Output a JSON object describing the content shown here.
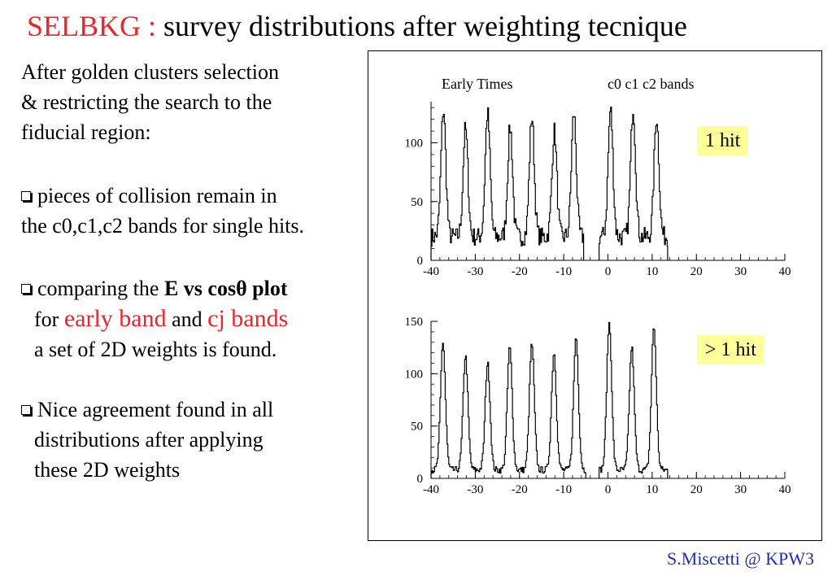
{
  "title": {
    "prefix": "SELBKG :",
    "main": "survey distributions after weighting tecnique"
  },
  "text": {
    "intro_line1": "After golden clusters selection",
    "intro_line2": "& restricting the search to the",
    "intro_line3": "fiducial region:",
    "b1_line1": "pieces of collision remain in",
    "b1_line2": "the c0,c1,c2 bands for single hits.",
    "b2_pre": "comparing the ",
    "b2_bold": "E vs cosθ plot",
    "b2_for": "for ",
    "b2_early": "early band",
    "b2_and": " and ",
    "b2_cj": "cj bands",
    "b2_line3": "a set of 2D weights is found.",
    "b3_line1": "Nice agreement found in all",
    "b3_line2": "distributions after applying",
    "b3_line3": "these 2D weights"
  },
  "panel": {
    "label_early": "Early Times",
    "label_bands": "c0 c1 c2 bands",
    "tag_top": "1 hit",
    "tag_bottom": "> 1 hit"
  },
  "footer": "S.Miscetti @ KPW3",
  "colors": {
    "accent_red": "#e8262b",
    "tag_bg": "#ffff99",
    "footer_blue": "#2030b0"
  },
  "chart_data": [
    {
      "type": "line",
      "title": "1 hit",
      "xlim": [
        -40,
        40
      ],
      "ylim": [
        0,
        135
      ],
      "xticks": [
        -40,
        -30,
        -20,
        -10,
        0,
        10,
        20,
        30,
        40
      ],
      "yticks": [
        0,
        50,
        100
      ],
      "peaks": [
        {
          "x": -37.3,
          "y": 128
        },
        {
          "x": -32.3,
          "y": 112
        },
        {
          "x": -27.3,
          "y": 125
        },
        {
          "x": -22.2,
          "y": 113
        },
        {
          "x": -17.3,
          "y": 122
        },
        {
          "x": -12.2,
          "y": 110
        },
        {
          "x": -7.8,
          "y": 125
        },
        {
          "x": 0.5,
          "y": 128
        },
        {
          "x": 5.6,
          "y": 130
        },
        {
          "x": 10.9,
          "y": 122
        }
      ],
      "baseline": 20,
      "data_ranges": [
        [
          -40,
          -5.5
        ],
        [
          -2.0,
          13.5
        ]
      ]
    },
    {
      "type": "line",
      "title": "> 1 hit",
      "xlim": [
        -40,
        40
      ],
      "ylim": [
        0,
        150
      ],
      "xticks": [
        -40,
        -30,
        -20,
        -10,
        0,
        10,
        20,
        30,
        40
      ],
      "yticks": [
        0,
        50,
        100,
        150
      ],
      "peaks": [
        {
          "x": -37.4,
          "y": 130
        },
        {
          "x": -32.3,
          "y": 117
        },
        {
          "x": -27.3,
          "y": 110
        },
        {
          "x": -22.3,
          "y": 125
        },
        {
          "x": -17.3,
          "y": 128
        },
        {
          "x": -12.3,
          "y": 120
        },
        {
          "x": -7.3,
          "y": 135
        },
        {
          "x": 0.2,
          "y": 148
        },
        {
          "x": 5.3,
          "y": 125
        },
        {
          "x": 10.3,
          "y": 145
        }
      ],
      "baseline": 8,
      "data_ranges": [
        [
          -40,
          -5.0
        ],
        [
          -2.0,
          13.5
        ]
      ]
    }
  ]
}
